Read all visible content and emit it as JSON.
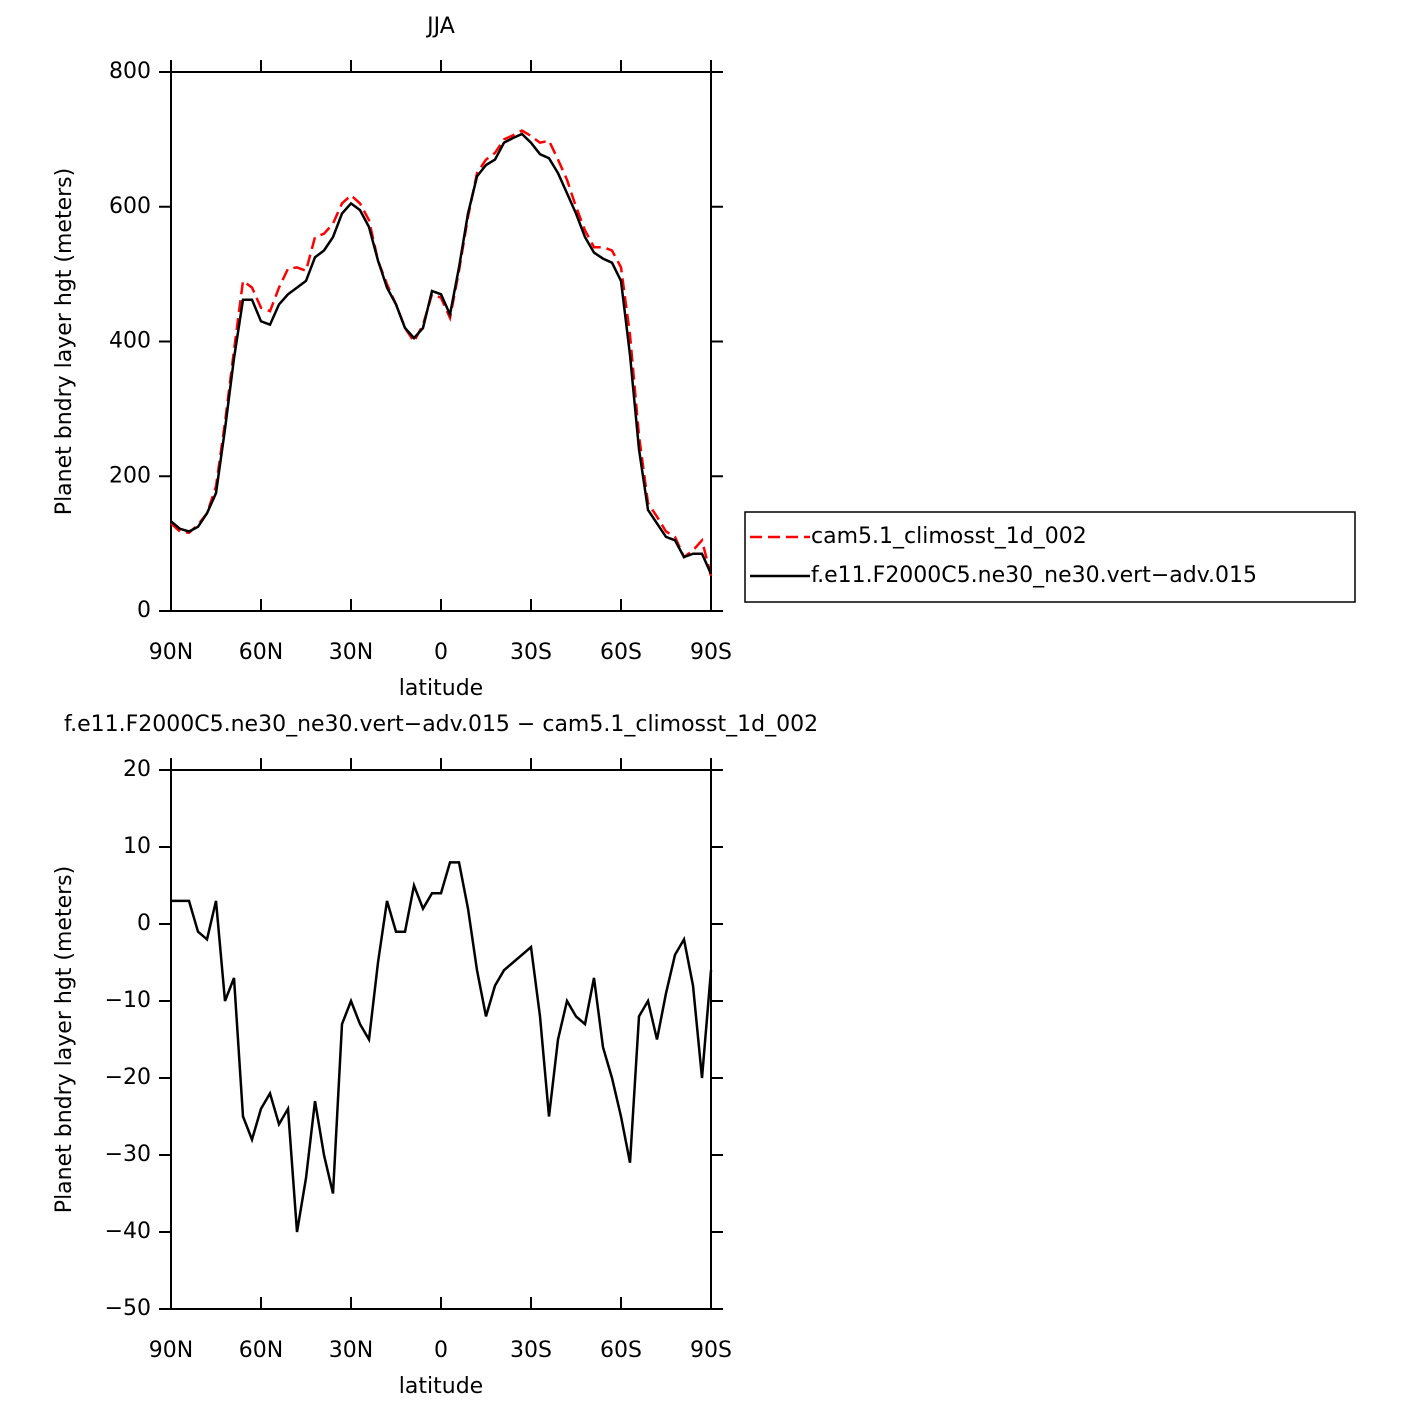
{
  "chart_data": [
    {
      "type": "line",
      "title": "JJA",
      "xlabel": "latitude",
      "ylabel": "Planet bndry layer hgt (meters)",
      "x": [
        90,
        87,
        84,
        81,
        78,
        75,
        72,
        69,
        66,
        63,
        60,
        57,
        54,
        51,
        48,
        45,
        42,
        39,
        36,
        33,
        30,
        27,
        24,
        21,
        18,
        15,
        12,
        9,
        6,
        3,
        0,
        -3,
        -6,
        -9,
        -12,
        -15,
        -18,
        -21,
        -24,
        -27,
        -30,
        -33,
        -36,
        -39,
        -42,
        -45,
        -48,
        -51,
        -54,
        -57,
        -60,
        -63,
        -66,
        -69,
        -72,
        -75,
        -78,
        -81,
        -84,
        -87,
        -90
      ],
      "series": [
        {
          "name": "cam5.1_climosst_1d_002",
          "color": "#ff0000",
          "dash": true,
          "values": [
            130,
            118,
            116,
            128,
            145,
            185,
            280,
            387,
            490,
            480,
            450,
            445,
            480,
            508,
            510,
            505,
            555,
            560,
            575,
            605,
            617,
            605,
            580,
            520,
            485,
            455,
            420,
            400,
            425,
            470,
            465,
            435,
            505,
            585,
            650,
            670,
            680,
            700,
            706,
            713,
            705,
            695,
            698,
            670,
            640,
            600,
            565,
            540,
            540,
            535,
            510,
            410,
            260,
            160,
            140,
            118,
            110,
            80,
            90,
            105,
            52
          ]
        },
        {
          "name": "f.e11.F2000C5.ne30_ne30.vert−adv.015",
          "color": "#000000",
          "dash": false,
          "values": [
            133,
            122,
            118,
            125,
            145,
            175,
            270,
            375,
            462,
            462,
            430,
            425,
            455,
            470,
            480,
            490,
            525,
            535,
            555,
            590,
            605,
            595,
            570,
            520,
            480,
            455,
            420,
            405,
            420,
            475,
            470,
            440,
            510,
            590,
            645,
            662,
            670,
            695,
            702,
            708,
            695,
            678,
            672,
            650,
            620,
            590,
            555,
            532,
            523,
            517,
            490,
            380,
            240,
            150,
            130,
            110,
            105,
            80,
            85,
            85,
            55
          ]
        }
      ],
      "xlim": [
        90,
        -90
      ],
      "ylim": [
        0,
        800
      ],
      "xticks": [
        {
          "value": 90,
          "label": "90N"
        },
        {
          "value": 60,
          "label": "60N"
        },
        {
          "value": 30,
          "label": "30N"
        },
        0,
        {
          "value": -30,
          "label": "30S"
        },
        {
          "value": -60,
          "label": "60S"
        },
        {
          "value": -90,
          "label": "90S"
        }
      ],
      "yticks": [
        0,
        200,
        400,
        600,
        800
      ]
    },
    {
      "type": "line",
      "title": "f.e11.F2000C5.ne30_ne30.vert−adv.015 − cam5.1_climosst_1d_002",
      "xlabel": "latitude",
      "ylabel": "Planet bndry layer hgt (meters)",
      "x": [
        90,
        87,
        84,
        81,
        78,
        75,
        72,
        69,
        66,
        63,
        60,
        57,
        54,
        51,
        48,
        45,
        42,
        39,
        36,
        33,
        30,
        27,
        24,
        21,
        18,
        15,
        12,
        9,
        6,
        3,
        0,
        -3,
        -6,
        -9,
        -12,
        -15,
        -18,
        -21,
        -24,
        -27,
        -30,
        -33,
        -36,
        -39,
        -42,
        -45,
        -48,
        -51,
        -54,
        -57,
        -60,
        -63,
        -66,
        -69,
        -72,
        -75,
        -78,
        -81,
        -84,
        -87,
        -90
      ],
      "series": [
        {
          "color": "#000000",
          "dash": false,
          "values": [
            3,
            3,
            3,
            -1,
            -2,
            3,
            -10,
            -7,
            -25,
            -28,
            -24,
            -22,
            -26,
            -24,
            -40,
            -33,
            -23,
            -30,
            -35,
            -13,
            -10,
            -13,
            -15,
            -5,
            3,
            -1,
            -1,
            5,
            2,
            4,
            4,
            8,
            8,
            2,
            -6,
            -12,
            -8,
            -6,
            -5,
            -4,
            -3,
            -12,
            -25,
            -15,
            -10,
            -12,
            -13,
            -7,
            -16,
            -20,
            -25,
            -31,
            -12,
            -10,
            -15,
            -9,
            -4,
            -2,
            -8,
            -20,
            -6
          ]
        }
      ],
      "xlim": [
        90,
        -90
      ],
      "ylim": [
        -50,
        20
      ],
      "xticks": [
        {
          "value": 90,
          "label": "90N"
        },
        {
          "value": 60,
          "label": "60N"
        },
        {
          "value": 30,
          "label": "30N"
        },
        0,
        {
          "value": -30,
          "label": "30S"
        },
        {
          "value": -60,
          "label": "60S"
        },
        {
          "value": -90,
          "label": "90S"
        }
      ],
      "yticks": [
        20,
        10,
        0,
        {
          "value": -10,
          "label": "−10"
        },
        {
          "value": -20,
          "label": "−20"
        },
        {
          "value": -30,
          "label": "−30"
        },
        {
          "value": -40,
          "label": "−40"
        },
        {
          "value": -50,
          "label": "−50"
        }
      ]
    }
  ]
}
